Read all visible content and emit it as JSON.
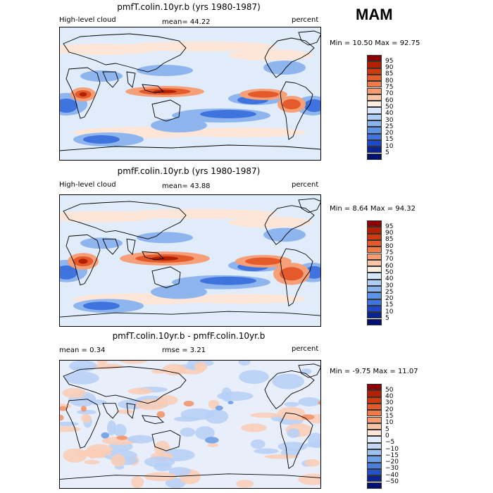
{
  "season": "MAM",
  "panels": [
    {
      "title": "pmfT.colin.10yr.b (yrs 1980-1987)",
      "left_label": "High-level cloud",
      "center_label": "mean=   44.22",
      "right_label": "percent",
      "minmax": "Min =   10.50 Max =   92.75",
      "colorbar": {
        "labels": [
          "95",
          "90",
          "85",
          "80",
          "75",
          "70",
          "60",
          "50",
          "40",
          "30",
          "25",
          "20",
          "15",
          "10",
          "5"
        ],
        "colors": [
          "#8b0000",
          "#b22000",
          "#d03a0f",
          "#e35a2b",
          "#f07a4a",
          "#f69b72",
          "#fbc5a6",
          "#fdeee2",
          "#d6e6fb",
          "#aecdf7",
          "#8ab4f0",
          "#5f93e6",
          "#3f73dd",
          "#1f48c8",
          "#0b2290",
          "#001070"
        ]
      },
      "field": "control"
    },
    {
      "title": "pmfF.colin.10yr.b (yrs 1980-1987)",
      "left_label": "High-level cloud",
      "center_label": "mean=   43.88",
      "right_label": "percent",
      "minmax": "Min =    8.64 Max =   94.32",
      "colorbar": {
        "labels": [
          "95",
          "90",
          "85",
          "80",
          "75",
          "70",
          "60",
          "50",
          "40",
          "30",
          "25",
          "20",
          "15",
          "10",
          "5"
        ],
        "colors": [
          "#8b0000",
          "#b22000",
          "#d03a0f",
          "#e35a2b",
          "#f07a4a",
          "#f69b72",
          "#fbc5a6",
          "#fdeee2",
          "#d6e6fb",
          "#aecdf7",
          "#8ab4f0",
          "#5f93e6",
          "#3f73dd",
          "#1f48c8",
          "#0b2290",
          "#001070"
        ]
      },
      "field": "test"
    },
    {
      "title": "pmfT.colin.10yr.b - pmfF.colin.10yr.b",
      "left_label": "mean =    0.34",
      "center_label": "rmse =    3.21",
      "right_label": "percent",
      "minmax": "Min =  -9.75 Max =   11.07",
      "colorbar": {
        "labels": [
          "50",
          "40",
          "30",
          "20",
          "15",
          "10",
          "5",
          "0",
          "−5",
          "−10",
          "−15",
          "−20",
          "−30",
          "−40",
          "−50"
        ],
        "colors": [
          "#8b0000",
          "#b22000",
          "#d03a0f",
          "#e35a2b",
          "#f07a4a",
          "#f69b72",
          "#fbc5a6",
          "#fde4d6",
          "#e3edfb",
          "#c2d8f6",
          "#9cc0f0",
          "#6f9fe6",
          "#4a7fdc",
          "#2552c8",
          "#0b2290",
          "#001070"
        ]
      },
      "field": "diff"
    }
  ]
}
